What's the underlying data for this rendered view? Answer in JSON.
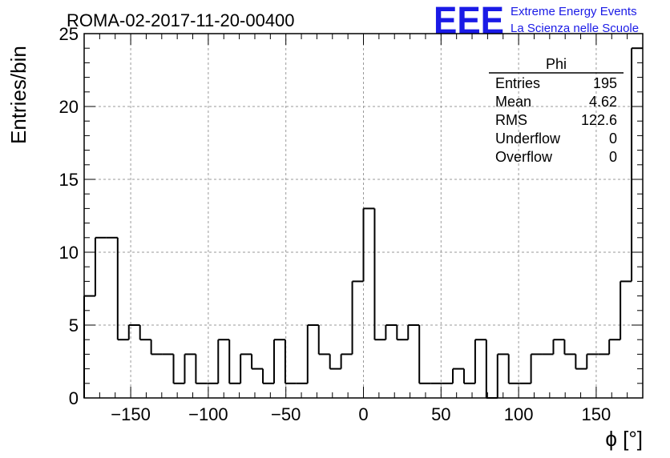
{
  "header": {
    "run_title": "ROMA-02-2017-11-20-00400",
    "logo_text": "EEE",
    "logo_line1": "Extreme Energy Events",
    "logo_line2": "La Scienza nelle Scuole"
  },
  "stats_box": {
    "name": "Phi",
    "rows": [
      {
        "label": "Entries",
        "value": "195"
      },
      {
        "label": "Mean",
        "value": "4.62"
      },
      {
        "label": "RMS",
        "value": "122.6"
      },
      {
        "label": "Underflow",
        "value": "0"
      },
      {
        "label": "Overflow",
        "value": "0"
      }
    ]
  },
  "chart_data": {
    "type": "bar",
    "style": "step-histogram",
    "xlabel": "ϕ [°]",
    "ylabel": "Entries/bin",
    "xlim": [
      -180,
      180
    ],
    "ylim": [
      0,
      25
    ],
    "bin_width": 7.2,
    "x_ticks": [
      -150,
      -100,
      -50,
      0,
      50,
      100,
      150
    ],
    "x_tick_labels": [
      "−150",
      "−100",
      "−50",
      "0",
      "50",
      "100",
      "150"
    ],
    "y_ticks": [
      0,
      5,
      10,
      15,
      20,
      25
    ],
    "y_tick_labels": [
      "0",
      "5",
      "10",
      "15",
      "20",
      "25"
    ],
    "grid": true,
    "values": [
      7,
      11,
      11,
      4,
      5,
      4,
      3,
      3,
      1,
      3,
      1,
      1,
      4,
      1,
      3,
      2,
      1,
      4,
      1,
      1,
      5,
      3,
      2,
      3,
      8,
      13,
      4,
      5,
      4,
      5,
      1,
      1,
      1,
      2,
      1,
      4,
      0,
      3,
      1,
      1,
      3,
      3,
      4,
      3,
      2,
      3,
      3,
      4,
      8,
      24
    ]
  }
}
